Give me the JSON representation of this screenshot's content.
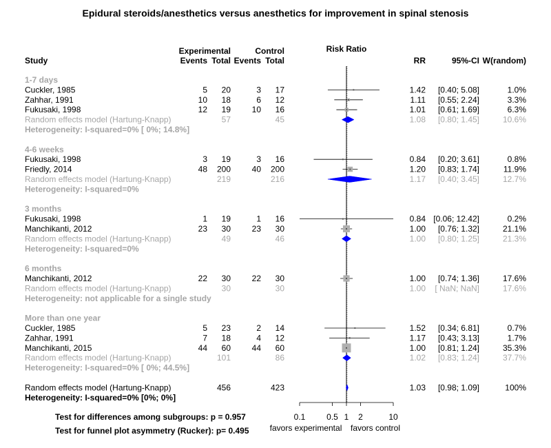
{
  "chart_data": {
    "type": "forest",
    "title": "Epidural steroids/anesthetics versus anesthetics for improvement in spinal stenosis",
    "axis": {
      "label": "Risk Ratio",
      "scale": "log",
      "ticks": [
        "0.1",
        "0.5",
        "1",
        "2",
        "10"
      ],
      "tick_values": [
        0.1,
        0.5,
        1,
        2,
        10
      ],
      "xlim": [
        0.1,
        10
      ],
      "reference_value": 1,
      "left_label": "favors experimental",
      "right_label": "favors control"
    },
    "headers": {
      "study": "Study",
      "experimental": "Experimental",
      "control": "Control",
      "events": "Events",
      "total": "Total",
      "rr": "RR",
      "ci": "95%-CI",
      "weight": "W(random)"
    },
    "groups": [
      {
        "title": "1-7 days",
        "studies": [
          {
            "name": "Cuckler, 1985",
            "e_events": "5",
            "e_total": "20",
            "c_events": "3",
            "c_total": "17",
            "rr_text": "1.42",
            "ci_text": "[0.40;  5.08]",
            "w_text": "1.0%",
            "rr": 1.42,
            "lo": 0.4,
            "hi": 5.08,
            "w": 1.0
          },
          {
            "name": "Zahhar, 1991",
            "e_events": "10",
            "e_total": "18",
            "c_events": "6",
            "c_total": "12",
            "rr_text": "1.11",
            "ci_text": "[0.55;  2.24]",
            "w_text": "3.3%",
            "rr": 1.11,
            "lo": 0.55,
            "hi": 2.24,
            "w": 3.3
          },
          {
            "name": "Fukusaki, 1998",
            "e_events": "12",
            "e_total": "19",
            "c_events": "10",
            "c_total": "16",
            "rr_text": "1.01",
            "ci_text": "[0.61;  1.69]",
            "w_text": "6.3%",
            "rr": 1.01,
            "lo": 0.61,
            "hi": 1.69,
            "w": 6.3
          }
        ],
        "summary": {
          "label": "Random effects model  (Hartung-Knapp)",
          "e_total": "57",
          "c_total": "45",
          "rr_text": "1.08",
          "ci_text": "[0.80;  1.45]",
          "w_text": "10.6%",
          "rr": 1.08,
          "lo": 0.8,
          "hi": 1.45
        },
        "heterogeneity": "Heterogeneity: I-squared=0% [  0%; 14.8%]"
      },
      {
        "title": "4-6 weeks",
        "studies": [
          {
            "name": "Fukusaki, 1998",
            "e_events": "3",
            "e_total": "19",
            "c_events": "3",
            "c_total": "16",
            "rr_text": "0.84",
            "ci_text": "[0.20;  3.61]",
            "w_text": "0.8%",
            "rr": 0.84,
            "lo": 0.2,
            "hi": 3.61,
            "w": 0.8
          },
          {
            "name": "Friedly, 2014",
            "e_events": "48",
            "e_total": "200",
            "c_events": "40",
            "c_total": "200",
            "rr_text": "1.20",
            "ci_text": "[0.83;  1.74]",
            "w_text": "11.9%",
            "rr": 1.2,
            "lo": 0.83,
            "hi": 1.74,
            "w": 11.9
          }
        ],
        "summary": {
          "label": "Random effects model  (Hartung-Knapp)",
          "e_total": "219",
          "c_total": "216",
          "rr_text": "1.17",
          "ci_text": "[0.40;  3.45]",
          "w_text": "12.7%",
          "rr": 1.17,
          "lo": 0.4,
          "hi": 3.45
        },
        "heterogeneity": "Heterogeneity: I-squared=0%"
      },
      {
        "title": "3 months",
        "studies": [
          {
            "name": "Fukusaki, 1998",
            "e_events": "1",
            "e_total": "19",
            "c_events": "1",
            "c_total": "16",
            "rr_text": "0.84",
            "ci_text": "[0.06; 12.42]",
            "w_text": "0.2%",
            "rr": 0.84,
            "lo": 0.06,
            "hi": 12.42,
            "w": 0.2
          },
          {
            "name": "Manchikanti, 2012",
            "e_events": "23",
            "e_total": "30",
            "c_events": "23",
            "c_total": "30",
            "rr_text": "1.00",
            "ci_text": "[0.76;  1.32]",
            "w_text": "21.1%",
            "rr": 1.0,
            "lo": 0.76,
            "hi": 1.32,
            "w": 21.1
          }
        ],
        "summary": {
          "label": "Random effects model  (Hartung-Knapp)",
          "e_total": "49",
          "c_total": "46",
          "rr_text": "1.00",
          "ci_text": "[0.80;  1.25]",
          "w_text": "21.3%",
          "rr": 1.0,
          "lo": 0.8,
          "hi": 1.25
        },
        "heterogeneity": "Heterogeneity: I-squared=0%"
      },
      {
        "title": "6 months",
        "studies": [
          {
            "name": "Manchikanti, 2012",
            "e_events": "22",
            "e_total": "30",
            "c_events": "22",
            "c_total": "30",
            "rr_text": "1.00",
            "ci_text": "[0.74;  1.36]",
            "w_text": "17.6%",
            "rr": 1.0,
            "lo": 0.74,
            "hi": 1.36,
            "w": 17.6
          }
        ],
        "summary": {
          "label": "Random effects model  (Hartung-Knapp)",
          "e_total": "30",
          "c_total": "30",
          "rr_text": "1.00",
          "ci_text": "[ NaN;   NaN]",
          "w_text": "17.6%",
          "rr": 1.0,
          "lo": null,
          "hi": null
        },
        "heterogeneity": "Heterogeneity: not applicable for a single study"
      },
      {
        "title": "More than one year",
        "studies": [
          {
            "name": "Cuckler, 1985",
            "e_events": "5",
            "e_total": "23",
            "c_events": "2",
            "c_total": "14",
            "rr_text": "1.52",
            "ci_text": "[0.34;  6.81]",
            "w_text": "0.7%",
            "rr": 1.52,
            "lo": 0.34,
            "hi": 6.81,
            "w": 0.7
          },
          {
            "name": "Zahhar, 1991",
            "e_events": "7",
            "e_total": "18",
            "c_events": "4",
            "c_total": "12",
            "rr_text": "1.17",
            "ci_text": "[0.43;  3.13]",
            "w_text": "1.7%",
            "rr": 1.17,
            "lo": 0.43,
            "hi": 3.13,
            "w": 1.7
          },
          {
            "name": "Manchikanti, 2015",
            "e_events": "44",
            "e_total": "60",
            "c_events": "44",
            "c_total": "60",
            "rr_text": "1.00",
            "ci_text": "[0.81;  1.24]",
            "w_text": "35.3%",
            "rr": 1.0,
            "lo": 0.81,
            "hi": 1.24,
            "w": 35.3
          }
        ],
        "summary": {
          "label": "Random effects model  (Hartung-Knapp)",
          "e_total": "101",
          "c_total": "86",
          "rr_text": "1.02",
          "ci_text": "[0.83;  1.24]",
          "w_text": "37.7%",
          "rr": 1.02,
          "lo": 0.83,
          "hi": 1.24
        },
        "heterogeneity": "Heterogeneity: I-squared=0% [  0%; 44.5%]"
      }
    ],
    "overall": {
      "label": "Random effects model  (Hartung-Knapp)",
      "e_total": "456",
      "c_total": "423",
      "rr_text": "1.03",
      "ci_text": "[0.98;  1.09]",
      "w_text": "100%",
      "rr": 1.03,
      "lo": 0.98,
      "hi": 1.09
    },
    "overall_heterogeneity": "Heterogeneity: I-squared=0% [0%; 0%]",
    "tests": [
      "Test for differences among subgroups: p = 0.957",
      "Test for funnel plot asymmetry (Rucker): p= 0.495"
    ],
    "colors": {
      "text": "#000000",
      "subgroup_text": "#a6a6a6",
      "square": "#b0b0b0",
      "diamond": "#0000ff",
      "line": "#000000"
    }
  }
}
